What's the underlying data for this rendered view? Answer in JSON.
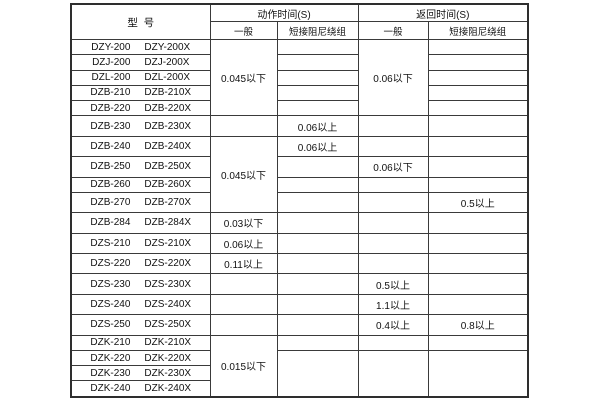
{
  "page": {
    "background": "#ffffff",
    "border_color": "#3a3a3a",
    "text_color": "#111111"
  },
  "table": {
    "header": {
      "model": "型  号",
      "action_time": "动作时间(S)",
      "return_time": "返回时间(S)",
      "general": "一般",
      "damping": "短接阻尼绕组"
    },
    "models": [
      [
        "DZY-200",
        "DZY-200X"
      ],
      [
        "DZJ-200",
        "DZJ-200X"
      ],
      [
        "DZL-200",
        "DZL-200X"
      ],
      [
        "DZB-210",
        "DZB-210X"
      ],
      [
        "DZB-220",
        "DZB-220X"
      ],
      [
        "DZB-230",
        "DZB-230X"
      ],
      [
        "DZB-240",
        "DZB-240X"
      ],
      [
        "DZB-250",
        "DZB-250X"
      ],
      [
        "DZB-260",
        "DZB-260X"
      ],
      [
        "DZB-270",
        "DZB-270X"
      ],
      [
        "DZB-284",
        "DZB-284X"
      ],
      [
        "DZS-210",
        "DZS-210X"
      ],
      [
        "DZS-220",
        "DZS-220X"
      ],
      [
        "DZS-230",
        "DZS-230X"
      ],
      [
        "DZS-240",
        "DZS-240X"
      ],
      [
        "DZS-250",
        "DZS-250X"
      ],
      [
        "DZK-210",
        "DZK-210X"
      ],
      [
        "DZK-220",
        "DZK-220X"
      ],
      [
        "DZK-230",
        "DZK-230X"
      ],
      [
        "DZK-240",
        "DZK-240X"
      ]
    ],
    "columns": {
      "action_general": [
        {
          "span": 5,
          "text": "0.045以下"
        },
        {
          "span": 1,
          "text": ""
        },
        {
          "span": 4,
          "text": "0.045以下"
        },
        {
          "span": 1,
          "text": "0.03以下"
        },
        {
          "span": 1,
          "text": "0.06以上"
        },
        {
          "span": 1,
          "text": "0.11以上"
        },
        {
          "span": 1,
          "text": ""
        },
        {
          "span": 1,
          "text": ""
        },
        {
          "span": 1,
          "text": ""
        },
        {
          "span": 4,
          "text": "0.015以下"
        }
      ],
      "action_damping": [
        {
          "span": 1,
          "text": ""
        },
        {
          "span": 1,
          "text": ""
        },
        {
          "span": 1,
          "text": ""
        },
        {
          "span": 1,
          "text": ""
        },
        {
          "span": 1,
          "text": ""
        },
        {
          "span": 1,
          "text": "0.06以上"
        },
        {
          "span": 1,
          "text": "0.06以上"
        },
        {
          "span": 1,
          "text": ""
        },
        {
          "span": 1,
          "text": ""
        },
        {
          "span": 1,
          "text": ""
        },
        {
          "span": 1,
          "text": ""
        },
        {
          "span": 1,
          "text": ""
        },
        {
          "span": 1,
          "text": ""
        },
        {
          "span": 1,
          "text": ""
        },
        {
          "span": 1,
          "text": ""
        },
        {
          "span": 1,
          "text": ""
        },
        {
          "span": 1,
          "text": ""
        },
        {
          "span": 3,
          "text": ""
        }
      ],
      "return_general": [
        {
          "span": 5,
          "text": "0.06以下"
        },
        {
          "span": 1,
          "text": ""
        },
        {
          "span": 1,
          "text": ""
        },
        {
          "span": 1,
          "text": "0.06以下"
        },
        {
          "span": 1,
          "text": ""
        },
        {
          "span": 1,
          "text": ""
        },
        {
          "span": 1,
          "text": ""
        },
        {
          "span": 1,
          "text": ""
        },
        {
          "span": 1,
          "text": ""
        },
        {
          "span": 1,
          "text": "0.5以上"
        },
        {
          "span": 1,
          "text": "1.1以上"
        },
        {
          "span": 1,
          "text": "0.4以上"
        },
        {
          "span": 1,
          "text": ""
        },
        {
          "span": 3,
          "text": ""
        }
      ],
      "return_damping": [
        {
          "span": 1,
          "text": ""
        },
        {
          "span": 1,
          "text": ""
        },
        {
          "span": 1,
          "text": ""
        },
        {
          "span": 1,
          "text": ""
        },
        {
          "span": 1,
          "text": ""
        },
        {
          "span": 1,
          "text": ""
        },
        {
          "span": 1,
          "text": ""
        },
        {
          "span": 1,
          "text": ""
        },
        {
          "span": 1,
          "text": ""
        },
        {
          "span": 1,
          "text": "0.5以上"
        },
        {
          "span": 1,
          "text": ""
        },
        {
          "span": 1,
          "text": ""
        },
        {
          "span": 1,
          "text": ""
        },
        {
          "span": 1,
          "text": ""
        },
        {
          "span": 1,
          "text": ""
        },
        {
          "span": 1,
          "text": "0.8以上"
        },
        {
          "span": 1,
          "text": ""
        },
        {
          "span": 3,
          "text": ""
        }
      ]
    }
  }
}
